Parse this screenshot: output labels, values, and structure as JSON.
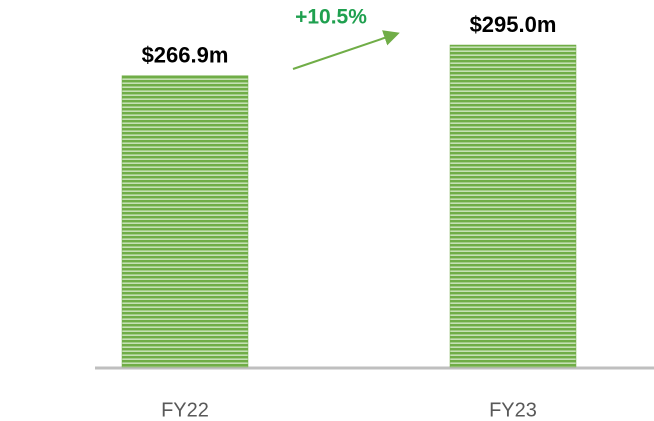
{
  "chart_data": {
    "type": "bar",
    "categories": [
      "FY22",
      "FY23"
    ],
    "values": [
      266.9,
      295.0
    ],
    "value_labels": [
      "$266.9m",
      "$295.0m"
    ],
    "color": "#70ad47",
    "annotations": [
      "+10.5%"
    ]
  }
}
